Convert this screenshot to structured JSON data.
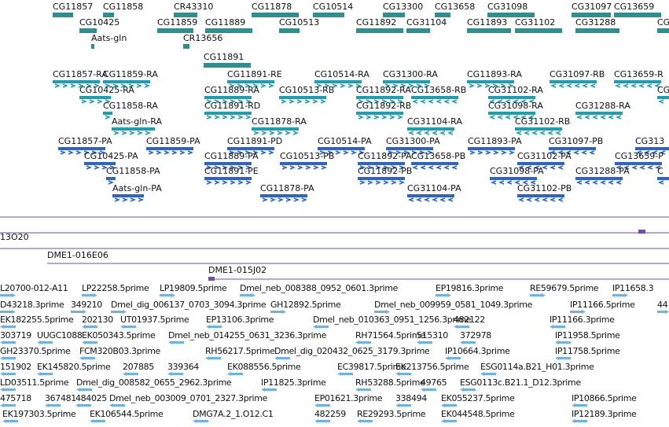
{
  "colors": {
    "gene": "#2f8f8f",
    "transcript": "#1aa0b5",
    "protein": "#2e63c8",
    "clone": "#6b4fa8",
    "est": "#6fb1e0",
    "text": "#111111"
  },
  "tracks": {
    "genes": {
      "features": [
        {
          "label": "CG11857"
        },
        {
          "label": "CG11858"
        },
        {
          "label": "CR43310"
        },
        {
          "label": "CG11878"
        },
        {
          "label": "CG10514"
        },
        {
          "label": "CG13300"
        },
        {
          "label": "CG13658"
        },
        {
          "label": "CG31098"
        },
        {
          "label": "CG31097"
        },
        {
          "label": "CG13659"
        },
        {
          "label": "CG10425"
        },
        {
          "label": "CG11859"
        },
        {
          "label": "CG11889"
        },
        {
          "label": "CG10513"
        },
        {
          "label": "CG11892"
        },
        {
          "label": "CG31104"
        },
        {
          "label": "CG11893"
        },
        {
          "label": "CG31102"
        },
        {
          "label": "CG31288"
        },
        {
          "label": "CG313"
        },
        {
          "label": "Aats-gln"
        },
        {
          "label": "CR13656"
        },
        {
          "label": "CG11891"
        }
      ]
    },
    "transcripts": {
      "features": [
        {
          "label": "CG11857-RA"
        },
        {
          "label": "CG11859-RA"
        },
        {
          "label": "CG11891-RE"
        },
        {
          "label": "CG10514-RA"
        },
        {
          "label": "CG31300-RA"
        },
        {
          "label": "CG11893-RA"
        },
        {
          "label": "CG31097-RB"
        },
        {
          "label": "CG13659-R"
        },
        {
          "label": "CG10425-RA"
        },
        {
          "label": "CG11889-RA"
        },
        {
          "label": "CG10513-RB"
        },
        {
          "label": "CG11892-RA"
        },
        {
          "label": "CG13658-RB"
        },
        {
          "label": "CG31102-RA"
        },
        {
          "label": "CG313"
        },
        {
          "label": "CG11858-RA"
        },
        {
          "label": "CG11891-RD"
        },
        {
          "label": "CG11892-RB"
        },
        {
          "label": "CG31098-RA"
        },
        {
          "label": "CG31288-RA"
        },
        {
          "label": "Aats-gln-RA"
        },
        {
          "label": "CG11878-RA"
        },
        {
          "label": "CG31104-RA"
        },
        {
          "label": "CG31102-RB"
        }
      ]
    },
    "proteins": {
      "features": [
        {
          "label": "CG11857-PA"
        },
        {
          "label": "CG11859-PA"
        },
        {
          "label": "CG11891-PD"
        },
        {
          "label": "CG10514-PA"
        },
        {
          "label": "CG31300-PA"
        },
        {
          "label": "CG11893-PA"
        },
        {
          "label": "CG31097-PB"
        },
        {
          "label": "CG313"
        },
        {
          "label": "CG10425-PA"
        },
        {
          "label": "CG11889-PA"
        },
        {
          "label": "CG10513-PB"
        },
        {
          "label": "CG11892-PA"
        },
        {
          "label": "CG13658-PB"
        },
        {
          "label": "CG31102-PA"
        },
        {
          "label": "CG13659-P"
        },
        {
          "label": "CG11858-PA"
        },
        {
          "label": "CG11891-PE"
        },
        {
          "label": "CG11892-PB"
        },
        {
          "label": "CG31098-PA"
        },
        {
          "label": "CG31288-PA"
        },
        {
          "label": "C"
        },
        {
          "label": "Aats-gln-PA"
        },
        {
          "label": "CG11878-PA"
        },
        {
          "label": "CG31104-PA"
        },
        {
          "label": "CG31102-PB"
        }
      ]
    },
    "clones": {
      "features": [
        {
          "label": "13O20"
        },
        {
          "label": "DME1-016E06"
        },
        {
          "label": "DME1-015J02"
        }
      ]
    },
    "ests": {
      "features": [
        {
          "label": "L20700-012-A11"
        },
        {
          "label": "LP22258.5prime"
        },
        {
          "label": "LP19809.5prime"
        },
        {
          "label": "Dmel_neb_008388_0952_0601.3prime"
        },
        {
          "label": "EP19816.3prime"
        },
        {
          "label": "RE59679.5prime"
        },
        {
          "label": "IP11658.3"
        },
        {
          "label": "D43218.3prime"
        },
        {
          "label": "349210"
        },
        {
          "label": "Dmel_dig_006137_0703_3094.3prime"
        },
        {
          "label": "GH12892.5prime"
        },
        {
          "label": "Dmel_neb_009959_0581_1049.3prime"
        },
        {
          "label": "IP11166.5prime"
        },
        {
          "label": "44"
        },
        {
          "label": "EK182255.5prime"
        },
        {
          "label": "202130"
        },
        {
          "label": "UT01937.5prime"
        },
        {
          "label": "EP13106.3prime"
        },
        {
          "label": "Dmel_neb_010363_0951_1256.3prime"
        },
        {
          "label": "482122"
        },
        {
          "label": "IP11166.3prime"
        },
        {
          "label": "303719"
        },
        {
          "label": "UUGC1088"
        },
        {
          "label": "EK050343.5prime"
        },
        {
          "label": "Dmel_neb_014255_0631_3236.3prime"
        },
        {
          "label": "RH71564.5prime"
        },
        {
          "label": "515310"
        },
        {
          "label": "372978"
        },
        {
          "label": "IP11958.5prime"
        },
        {
          "label": "GH23370.5prime"
        },
        {
          "label": "FCM320B03.3prime"
        },
        {
          "label": "RH56217.5prime"
        },
        {
          "label": "Dmel_dig_020432_0625_3179.3prime"
        },
        {
          "label": "IP10664.3prime"
        },
        {
          "label": "IP11758.5prime"
        },
        {
          "label": "151902"
        },
        {
          "label": "EK145820.5prime"
        },
        {
          "label": "207885"
        },
        {
          "label": "339364"
        },
        {
          "label": "EK088556.5prime"
        },
        {
          "label": "EC39817.5prime"
        },
        {
          "label": "EK213756.5prime"
        },
        {
          "label": "ESG0114a.B21_H01.3prime"
        },
        {
          "label": "LD03511.5prime"
        },
        {
          "label": "Dmel_dig_008582_0655_2962.3prime"
        },
        {
          "label": "IP11825.3prime"
        },
        {
          "label": "RH53288.5prime"
        },
        {
          "label": "49765"
        },
        {
          "label": "ESG0113c.B21.1_D12.3prime"
        },
        {
          "label": "475718"
        },
        {
          "label": "367481"
        },
        {
          "label": "484025"
        },
        {
          "label": "Dmel_neb_003009_0701_2327.3prime"
        },
        {
          "label": "EP01621.3prime"
        },
        {
          "label": "338494"
        },
        {
          "label": "EK055237.5prime"
        },
        {
          "label": "IP10866.5prime"
        },
        {
          "label": "EK197303.5prime"
        },
        {
          "label": "EK106544.5prime"
        },
        {
          "label": "DMG7A.2_1.O12.C1"
        },
        {
          "label": "482259"
        },
        {
          "label": "RE29293.5prime"
        },
        {
          "label": "EK044548.5prime"
        },
        {
          "label": "IP12189.3prime"
        }
      ]
    }
  }
}
